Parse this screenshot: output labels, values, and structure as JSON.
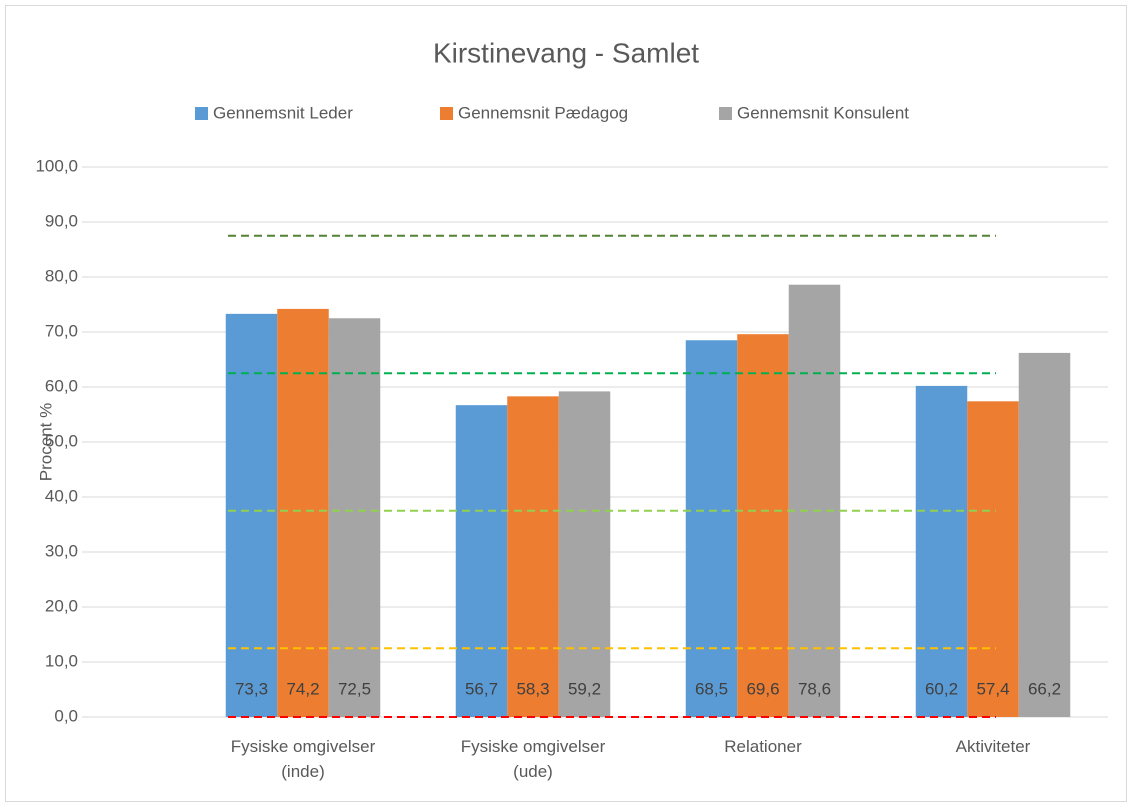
{
  "chart_data": {
    "type": "bar",
    "title": "Kirstinevang - Samlet",
    "y_label": "Procent %",
    "categories": [
      "Fysiske omgivelser\n(inde)",
      "Fysiske omgivelser\n(ude)",
      "Relationer",
      "Aktiviteter"
    ],
    "series": [
      {
        "name": "Gennemsnit Leder",
        "color": "#5b9bd5",
        "values": [
          73.3,
          56.7,
          68.5,
          60.2
        ],
        "value_labels": [
          "73,3",
          "56,7",
          "68,5",
          "60,2"
        ]
      },
      {
        "name": "Gennemsnit Pædagog",
        "color": "#ed7d31",
        "values": [
          74.2,
          58.3,
          69.6,
          57.4
        ],
        "value_labels": [
          "74,2",
          "58,3",
          "69,6",
          "57,4"
        ]
      },
      {
        "name": "Gennemsnit Konsulent",
        "color": "#a5a5a5",
        "values": [
          72.5,
          59.2,
          78.6,
          66.2
        ],
        "value_labels": [
          "72,5",
          "59,2",
          "78,6",
          "66,2"
        ]
      }
    ],
    "ylim": [
      0,
      100
    ],
    "yticks": [
      {
        "value": 0,
        "label": "0,0"
      },
      {
        "value": 10,
        "label": "10,0"
      },
      {
        "value": 20,
        "label": "20,0"
      },
      {
        "value": 30,
        "label": "30,0"
      },
      {
        "value": 40,
        "label": "40,0"
      },
      {
        "value": 50,
        "label": "50,0"
      },
      {
        "value": 60,
        "label": "60,0"
      },
      {
        "value": 70,
        "label": "70,0"
      },
      {
        "value": 80,
        "label": "80,0"
      },
      {
        "value": 90,
        "label": "90,0"
      },
      {
        "value": 100,
        "label": "100,0"
      }
    ],
    "grid": true,
    "legend": "top",
    "reference_lines": [
      {
        "value": 0,
        "color": "#ff0000"
      },
      {
        "value": 12.5,
        "color": "#ffc000"
      },
      {
        "value": 37.5,
        "color": "#92d050"
      },
      {
        "value": 62.5,
        "color": "#00b050"
      },
      {
        "value": 87.5,
        "color": "#548235"
      }
    ]
  }
}
